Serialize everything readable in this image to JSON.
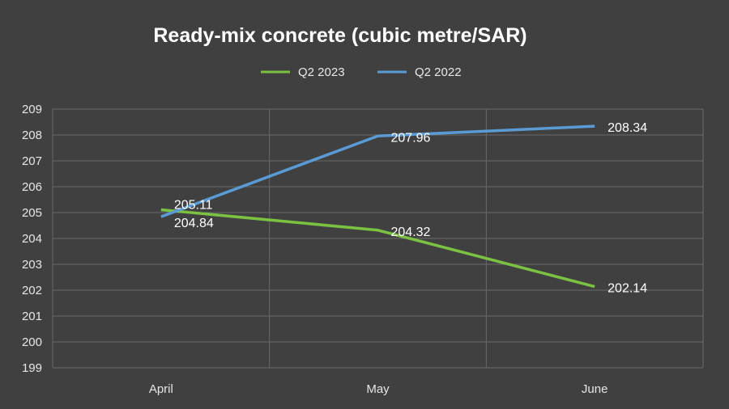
{
  "chart_data": {
    "type": "line",
    "title": "Ready-mix concrete (cubic metre/SAR)",
    "categories": [
      "April",
      "May",
      "June"
    ],
    "series": [
      {
        "name": "Q2 2023",
        "color": "#7cc242",
        "values": [
          205.11,
          204.32,
          202.14
        ],
        "labels": [
          "205.11",
          "204.32",
          "202.14"
        ]
      },
      {
        "name": "Q2 2022",
        "color": "#5b9bd5",
        "values": [
          204.84,
          207.96,
          208.34
        ],
        "labels": [
          "204.84",
          "207.96",
          "208.34"
        ]
      }
    ],
    "ylim": [
      199,
      209
    ],
    "yticks": [
      "199",
      "200",
      "201",
      "202",
      "203",
      "204",
      "205",
      "206",
      "207",
      "208",
      "209"
    ],
    "grid": true,
    "legend_position": "top"
  }
}
